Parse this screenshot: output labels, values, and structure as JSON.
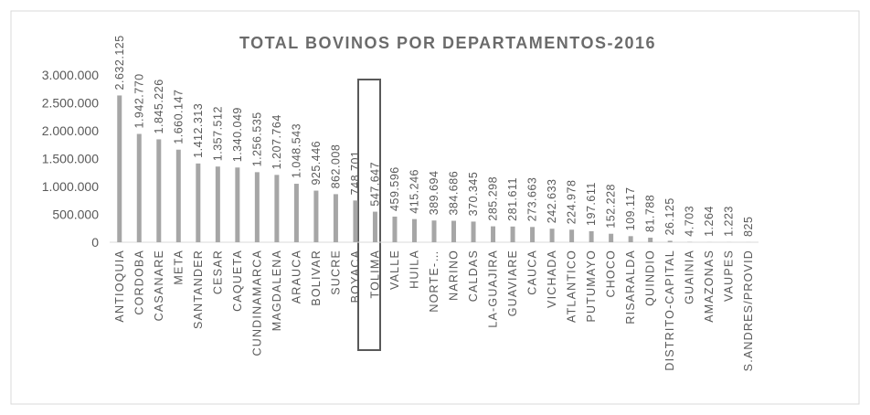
{
  "chart_data": {
    "type": "bar",
    "title": "TOTAL BOVINOS POR DEPARTAMENTOS-2016",
    "categories": [
      "ANTIOQUIA",
      "CORDOBA",
      "CASANARE",
      "META",
      "SANTANDER",
      "CESAR",
      "CAQUETA",
      "CUNDINAMARCA",
      "MAGDALENA",
      "ARAUCA",
      "BOLIVAR",
      "SUCRE",
      "BOYACA",
      "TOLIMA",
      "VALLE",
      "HUILA",
      "NORTE-…",
      "NARINO",
      "CALDAS",
      "LA-GUAJIRA",
      "GUAVIARE",
      "CAUCA",
      "VICHADA",
      "ATLANTICO",
      "PUTUMAYO",
      "CHOCO",
      "RISARALDA",
      "QUINDIO",
      "DISTRITO-CAPITAL",
      "GUAINIA",
      "AMAZONAS",
      "VAUPES",
      "S.ANDRES/PROVID"
    ],
    "values": [
      2632125,
      1942770,
      1845226,
      1660147,
      1412313,
      1357512,
      1340049,
      1256535,
      1207764,
      1048543,
      925446,
      862008,
      748701,
      547647,
      459596,
      415246,
      389694,
      384686,
      370345,
      285298,
      281611,
      273663,
      242633,
      224978,
      197611,
      152228,
      109117,
      81788,
      26125,
      4703,
      1264,
      1223,
      825
    ],
    "value_labels": [
      "2.632.125",
      "1.942.770",
      "1.845.226",
      "1.660.147",
      "1.412.313",
      "1.357.512",
      "1.340.049",
      "1.256.535",
      "1.207.764",
      "1.048.543",
      "925.446",
      "862.008",
      "748.701",
      "547.647",
      "459.596",
      "415.246",
      "389.694",
      "384.686",
      "370.345",
      "285.298",
      "281.611",
      "273.663",
      "242.633",
      "224.978",
      "197.611",
      "152.228",
      "109.117",
      "81.788",
      "26.125",
      "4.703",
      "1.264",
      "1.223",
      "825"
    ],
    "color": "#a6a6a6",
    "ylim": [
      0,
      3000000
    ],
    "yticks": [
      0,
      {
        "value": 500000,
        "label": "500.000"
      },
      {
        "value": 1000000,
        "label": "1.000.000"
      },
      {
        "value": 1500000,
        "label": "1.500.000"
      },
      {
        "value": 2000000,
        "label": "2.000.000"
      },
      {
        "value": 2500000,
        "label": "2.500.000"
      },
      {
        "value": 3000000,
        "label": "3.000.000"
      }
    ],
    "grid": false
  }
}
